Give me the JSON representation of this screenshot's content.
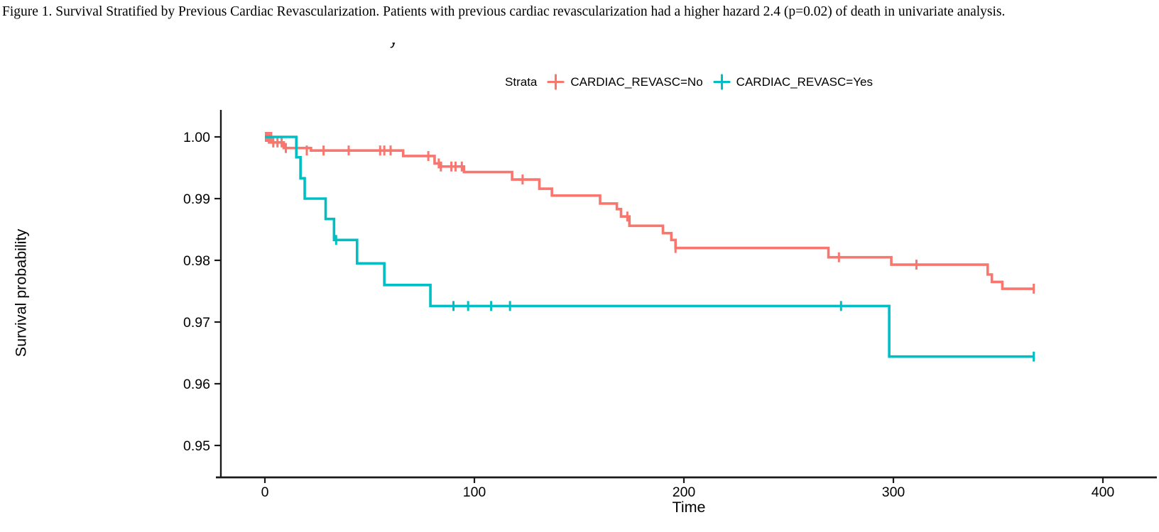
{
  "caption": "Figure 1. Survival Stratified by Previous Cardiac Revascularization. Patients with previous cardiac revascularization had a higher hazard 2.4 (p=0.02) of death in univariate analysis.",
  "title_fragment": "y",
  "legend": {
    "title": "Strata",
    "items": [
      {
        "label": "CARDIAC_REVASC=No",
        "color": "#F8766D",
        "symbol": "plus-censor-mark"
      },
      {
        "label": "CARDIAC_REVASC=Yes",
        "color": "#00BFC4",
        "symbol": "plus-censor-mark"
      }
    ]
  },
  "chart_data": {
    "type": "line",
    "subtype": "kaplan-meier-step",
    "title": "",
    "xlabel": "Time",
    "ylabel": "Survival probability",
    "xlim": [
      -21,
      427
    ],
    "ylim": [
      0.9447,
      1.0044
    ],
    "grid": false,
    "legend_position": "top",
    "x_ticks": [
      {
        "v": 0,
        "label": "0"
      },
      {
        "v": 100,
        "label": "100"
      },
      {
        "v": 200,
        "label": "200"
      },
      {
        "v": 300,
        "label": "300"
      },
      {
        "v": 400,
        "label": "400"
      }
    ],
    "y_ticks": [
      {
        "v": 1.0,
        "label": "1.00"
      },
      {
        "v": 0.99,
        "label": "0.99"
      },
      {
        "v": 0.98,
        "label": "0.98"
      },
      {
        "v": 0.97,
        "label": "0.97"
      },
      {
        "v": 0.96,
        "label": "0.96"
      },
      {
        "v": 0.95,
        "label": "0.95"
      }
    ],
    "series": [
      {
        "name": "CARDIAC_REVASC=No",
        "color": "#F8766D",
        "end_time": 367,
        "steps": [
          [
            0,
            1.0
          ],
          [
            2,
            0.9991
          ],
          [
            9,
            0.9982
          ],
          [
            22,
            0.9978
          ],
          [
            66,
            0.9969
          ],
          [
            81,
            0.9957
          ],
          [
            84,
            0.9952
          ],
          [
            95,
            0.9943
          ],
          [
            118,
            0.9931
          ],
          [
            131,
            0.9916
          ],
          [
            137,
            0.9905
          ],
          [
            160,
            0.9892
          ],
          [
            168,
            0.9883
          ],
          [
            170,
            0.9871
          ],
          [
            174,
            0.9856
          ],
          [
            190,
            0.9844
          ],
          [
            194,
            0.9833
          ],
          [
            196,
            0.982
          ],
          [
            269,
            0.9805
          ],
          [
            299,
            0.9793
          ],
          [
            345,
            0.9777
          ],
          [
            347,
            0.9765
          ],
          [
            352,
            0.9754
          ]
        ],
        "censors": [
          [
            0.5,
            1.0
          ],
          [
            1,
            1.0
          ],
          [
            2,
            1.0
          ],
          [
            3,
            1.0
          ],
          [
            4,
            0.9991
          ],
          [
            6,
            0.9991
          ],
          [
            8,
            0.9991
          ],
          [
            10,
            0.9982
          ],
          [
            20,
            0.9978
          ],
          [
            28,
            0.9978
          ],
          [
            40,
            0.9978
          ],
          [
            55,
            0.9978
          ],
          [
            57,
            0.9978
          ],
          [
            60,
            0.9978
          ],
          [
            78,
            0.9969
          ],
          [
            83,
            0.9957
          ],
          [
            84,
            0.9952
          ],
          [
            89,
            0.9952
          ],
          [
            91,
            0.9952
          ],
          [
            94,
            0.9952
          ],
          [
            123,
            0.9931
          ],
          [
            173,
            0.9871
          ],
          [
            196,
            0.982
          ],
          [
            274,
            0.9805
          ],
          [
            311,
            0.9793
          ],
          [
            367,
            0.9754
          ]
        ]
      },
      {
        "name": "CARDIAC_REVASC=Yes",
        "color": "#00BFC4",
        "end_time": 367,
        "steps": [
          [
            0,
            1.0
          ],
          [
            15,
            0.9967
          ],
          [
            17,
            0.9933
          ],
          [
            19,
            0.99
          ],
          [
            29,
            0.9867
          ],
          [
            33,
            0.9833
          ],
          [
            44,
            0.9795
          ],
          [
            57,
            0.976
          ],
          [
            79,
            0.9726
          ],
          [
            298,
            0.9644
          ]
        ],
        "censors": [
          [
            34,
            0.9833
          ],
          [
            90,
            0.9726
          ],
          [
            97,
            0.9726
          ],
          [
            108,
            0.9726
          ],
          [
            117,
            0.9726
          ],
          [
            275,
            0.9726
          ],
          [
            367,
            0.9644
          ]
        ]
      }
    ]
  }
}
